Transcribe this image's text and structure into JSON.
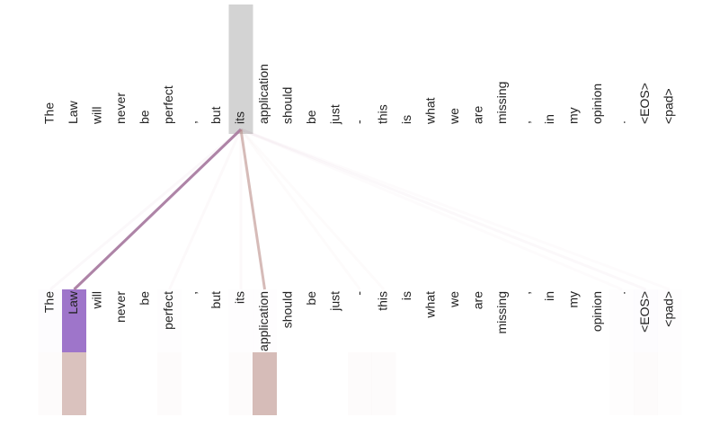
{
  "tokens_top": [
    "The",
    "Law",
    "will",
    "never",
    "be",
    "perfect",
    ",",
    "but",
    "its",
    "application",
    "should",
    "be",
    "just",
    "-",
    "this",
    "is",
    "what",
    "we",
    "are",
    "missing",
    ",",
    "in",
    "my",
    "opinion",
    ".",
    "<EOS>",
    "<pad>"
  ],
  "tokens_bottom": [
    "The",
    "Law",
    "will",
    "never",
    "be",
    "perfect",
    ",",
    "but",
    "its",
    "application",
    "should",
    "be",
    "just",
    "-",
    "this",
    "is",
    "what",
    "we",
    "are",
    "missing",
    ",",
    "in",
    "my",
    "opinion",
    ".",
    "<EOS>",
    "<pad>"
  ],
  "attention": {
    "query_index": 8,
    "heads": [
      {
        "color": "#9466c4",
        "weights": [
          0.02,
          0.9,
          0,
          0,
          0,
          0.01,
          0,
          0,
          0.01,
          0.01,
          0,
          0,
          0,
          0,
          0,
          0,
          0,
          0,
          0,
          0,
          0,
          0,
          0,
          0,
          0.01,
          0.02,
          0.01
        ]
      },
      {
        "color": "#bb8f88",
        "weights": [
          0.03,
          0.55,
          0,
          0,
          0,
          0.03,
          0,
          0,
          0.03,
          0.6,
          0,
          0,
          0,
          0.03,
          0.03,
          0,
          0,
          0,
          0,
          0,
          0,
          0,
          0,
          0,
          0.02,
          0.03,
          0.02
        ]
      }
    ]
  }
}
